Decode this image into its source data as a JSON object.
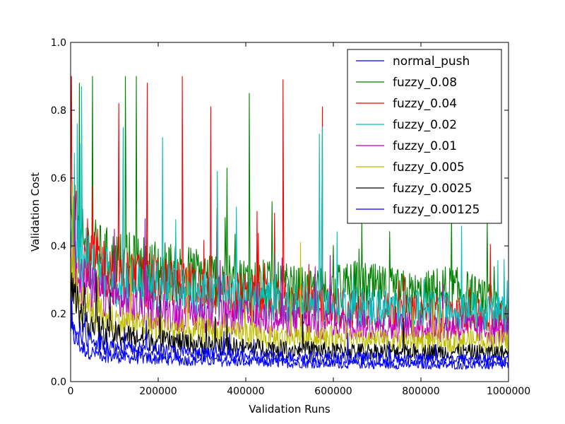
{
  "chart_data": {
    "type": "line",
    "title": "",
    "xlabel": "Validation Runs",
    "ylabel": "Validation Cost",
    "xlim": [
      0,
      1000000
    ],
    "ylim": [
      0.0,
      1.0
    ],
    "x_ticks": [
      0,
      200000,
      400000,
      600000,
      800000,
      1000000
    ],
    "x_tick_labels": [
      "0",
      "200000",
      "400000",
      "600000",
      "800000",
      "1000000"
    ],
    "y_ticks": [
      0.0,
      0.2,
      0.4,
      0.6,
      0.8,
      1.0
    ],
    "y_tick_labels": [
      "0.0",
      "0.2",
      "0.4",
      "0.6",
      "0.8",
      "1.0"
    ],
    "grid": false,
    "legend_position": "top-right",
    "x": [
      0,
      25000,
      50000,
      75000,
      100000,
      150000,
      200000,
      250000,
      300000,
      350000,
      400000,
      450000,
      500000,
      550000,
      600000,
      650000,
      700000,
      750000,
      800000,
      850000,
      900000,
      950000,
      1000000
    ],
    "series": [
      {
        "name": "normal_push",
        "color": "#0000ff",
        "values": [
          0.15,
          0.1,
          0.085,
          0.078,
          0.074,
          0.07,
          0.067,
          0.064,
          0.062,
          0.06,
          0.058,
          0.056,
          0.055,
          0.054,
          0.053,
          0.052,
          0.051,
          0.05,
          0.05,
          0.049,
          0.049,
          0.048,
          0.048
        ],
        "spikes": []
      },
      {
        "name": "fuzzy_0.08",
        "color": "#008000",
        "values": [
          0.45,
          0.4,
          0.38,
          0.36,
          0.35,
          0.34,
          0.33,
          0.32,
          0.31,
          0.3,
          0.29,
          0.28,
          0.27,
          0.26,
          0.27,
          0.28,
          0.27,
          0.26,
          0.25,
          0.27,
          0.26,
          0.23,
          0.21
        ],
        "spikes": [
          [
            20000,
            0.88
          ],
          [
            50000,
            0.9
          ],
          [
            125000,
            0.9
          ],
          [
            150000,
            0.9
          ],
          [
            408000,
            0.85
          ],
          [
            665000,
            0.48
          ],
          [
            870000,
            0.5
          ]
        ]
      },
      {
        "name": "fuzzy_0.04",
        "color": "#ff0000",
        "values": [
          0.5,
          0.4,
          0.36,
          0.34,
          0.32,
          0.3,
          0.29,
          0.28,
          0.27,
          0.26,
          0.25,
          0.24,
          0.23,
          0.22,
          0.22,
          0.21,
          0.21,
          0.2,
          0.2,
          0.2,
          0.19,
          0.19,
          0.18
        ],
        "spikes": [
          [
            2000,
            0.9
          ],
          [
            110000,
            0.82
          ],
          [
            175000,
            0.88
          ],
          [
            255000,
            0.9
          ],
          [
            320000,
            0.81
          ],
          [
            485000,
            0.89
          ],
          [
            575000,
            0.81
          ]
        ]
      },
      {
        "name": "fuzzy_0.02",
        "color": "#00bfbf",
        "values": [
          0.42,
          0.38,
          0.34,
          0.32,
          0.3,
          0.29,
          0.28,
          0.27,
          0.26,
          0.25,
          0.24,
          0.24,
          0.23,
          0.23,
          0.23,
          0.22,
          0.22,
          0.21,
          0.21,
          0.21,
          0.21,
          0.2,
          0.2
        ],
        "spikes": [
          [
            15000,
            0.76
          ],
          [
            25000,
            0.87
          ],
          [
            120000,
            0.75
          ],
          [
            210000,
            0.72
          ],
          [
            335000,
            0.62
          ],
          [
            568000,
            0.73
          ],
          [
            575000,
            0.75
          ],
          [
            990000,
            0.36
          ]
        ]
      },
      {
        "name": "fuzzy_0.01",
        "color": "#bf00bf",
        "values": [
          0.36,
          0.3,
          0.27,
          0.25,
          0.24,
          0.22,
          0.21,
          0.2,
          0.2,
          0.19,
          0.19,
          0.18,
          0.18,
          0.17,
          0.17,
          0.17,
          0.16,
          0.16,
          0.16,
          0.16,
          0.16,
          0.15,
          0.15
        ],
        "spikes": [
          [
            10000,
            0.55
          ],
          [
            100000,
            0.45
          ],
          [
            170000,
            0.48
          ]
        ]
      },
      {
        "name": "fuzzy_0.005",
        "color": "#bfbf00",
        "values": [
          0.3,
          0.24,
          0.21,
          0.19,
          0.18,
          0.17,
          0.16,
          0.15,
          0.15,
          0.14,
          0.14,
          0.13,
          0.13,
          0.13,
          0.13,
          0.12,
          0.12,
          0.12,
          0.12,
          0.12,
          0.12,
          0.12,
          0.12
        ],
        "spikes": [
          [
            8000,
            0.4
          ],
          [
            525000,
            0.41
          ]
        ]
      },
      {
        "name": "fuzzy_0.0025",
        "color": "#000000",
        "values": [
          0.28,
          0.2,
          0.17,
          0.15,
          0.14,
          0.13,
          0.12,
          0.115,
          0.11,
          0.105,
          0.1,
          0.1,
          0.095,
          0.095,
          0.09,
          0.09,
          0.09,
          0.09,
          0.088,
          0.088,
          0.087,
          0.086,
          0.085
        ],
        "spikes": []
      },
      {
        "name": "fuzzy_0.00125",
        "color": "#0000ff",
        "values": [
          0.2,
          0.14,
          0.12,
          0.11,
          0.1,
          0.095,
          0.09,
          0.085,
          0.08,
          0.078,
          0.076,
          0.074,
          0.072,
          0.071,
          0.07,
          0.069,
          0.068,
          0.067,
          0.066,
          0.065,
          0.065,
          0.064,
          0.064
        ],
        "spikes": []
      }
    ]
  }
}
